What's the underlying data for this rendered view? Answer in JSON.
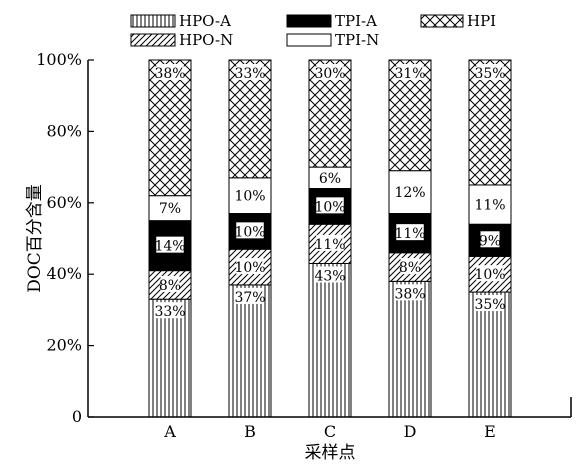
{
  "chart_data": {
    "type": "bar",
    "stacked": true,
    "xlabel": "采样点",
    "ylabel": "DOC百分含量",
    "ylim": [
      0,
      100
    ],
    "yticks": [
      0,
      20,
      40,
      60,
      80,
      100
    ],
    "ytick_labels": [
      "0",
      "20%",
      "40%",
      "60%",
      "80%",
      "100%"
    ],
    "categories": [
      "A",
      "B",
      "C",
      "D",
      "E"
    ],
    "legend_placement": "top",
    "grid": false,
    "series": [
      {
        "name": "HPO-A",
        "pattern": "vertical",
        "values": [
          33,
          37,
          43,
          38,
          35
        ],
        "labels": [
          "33%",
          "37%",
          "43%",
          "38%",
          "35%"
        ]
      },
      {
        "name": "HPO-N",
        "pattern": "diagonal",
        "values": [
          8,
          10,
          11,
          8,
          10
        ],
        "labels": [
          "8%",
          "10%",
          "11%",
          "8%",
          "10%"
        ]
      },
      {
        "name": "TPI-A",
        "pattern": "solid",
        "values": [
          14,
          10,
          10,
          11,
          9
        ],
        "labels": [
          "14%",
          "10%",
          "10%",
          "11%",
          "9%"
        ]
      },
      {
        "name": "TPI-N",
        "pattern": "white",
        "values": [
          7,
          10,
          6,
          12,
          11
        ],
        "labels": [
          "7%",
          "10%",
          "6%",
          "12%",
          "11%"
        ]
      },
      {
        "name": "HPI",
        "pattern": "crosshatch",
        "values": [
          38,
          33,
          30,
          31,
          35
        ],
        "labels": [
          "38%",
          "33%",
          "30%",
          "31%",
          "35%"
        ]
      }
    ]
  }
}
